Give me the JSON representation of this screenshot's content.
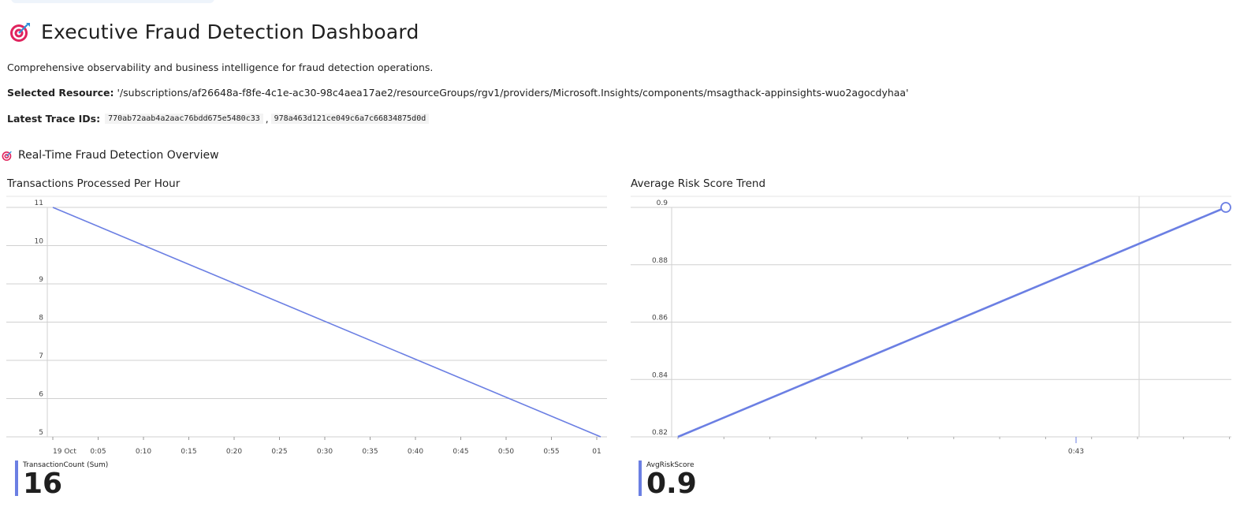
{
  "header": {
    "title": "Executive Fraud Detection Dashboard",
    "icon": "target-icon"
  },
  "description": "Comprehensive observability and business intelligence for fraud detection operations.",
  "resource": {
    "label": "Selected Resource:",
    "value": "'/subscriptions/af26648a-f8fe-4c1e-ac30-98c4aea17ae2/resourceGroups/rgv1/providers/Microsoft.Insights/components/msagthack-appinsights-wuo2agocdyhaa'"
  },
  "trace": {
    "label": "Latest Trace IDs:",
    "ids": [
      "770ab72aab4a2aac76bdd675e5480c33",
      "978a463d121ce049c6a7c66834875d0d"
    ],
    "separator": ","
  },
  "section": {
    "title": "Real-Time Fraud Detection Overview",
    "icon": "target-icon"
  },
  "colors": {
    "series": "#6b7fe3",
    "grid": "#d0d0d0",
    "icon_red": "#e0245e",
    "icon_blue": "#2f8fd8"
  },
  "chart_data": [
    {
      "type": "line",
      "title": "Transactions Processed Per Hour",
      "x_ticks": [
        "19 Oct",
        "0:05",
        "0:10",
        "0:15",
        "0:20",
        "0:25",
        "0:30",
        "0:35",
        "0:40",
        "0:45",
        "0:50",
        "0:55",
        "01"
      ],
      "y_ticks": [
        5,
        6,
        7,
        8,
        9,
        10,
        11
      ],
      "ylim": [
        5,
        11
      ],
      "grid": true,
      "series": [
        {
          "name": "TransactionCount (Sum)",
          "x": [
            "19 Oct 00:00",
            "19 Oct 01:00"
          ],
          "values": [
            11,
            5
          ]
        }
      ],
      "legend": {
        "name": "TransactionCount (Sum)",
        "value": "16",
        "placement": "bottom-left"
      }
    },
    {
      "type": "line",
      "title": "Average Risk Score Trend",
      "x_ticks": [
        "0:43"
      ],
      "y_ticks": [
        0.82,
        0.84,
        0.86,
        0.88,
        0.9
      ],
      "ylim": [
        0.82,
        0.9
      ],
      "grid": true,
      "series": [
        {
          "name": "AvgRiskScore",
          "values": [
            0.82,
            0.9
          ]
        }
      ],
      "legend": {
        "name": "AvgRiskScore",
        "value": "0.9",
        "placement": "bottom-left"
      }
    }
  ]
}
